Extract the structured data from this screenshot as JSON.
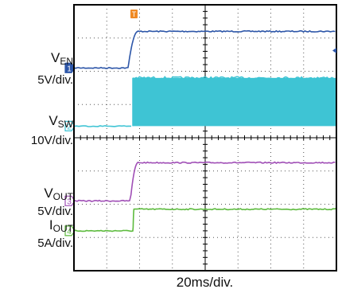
{
  "chart_data": {
    "type": "line",
    "grid": true,
    "divisions": {
      "x": 8,
      "y": 8
    },
    "timebase": "20ms/div.",
    "trigger_marker": "T",
    "channels": [
      {
        "id": "1",
        "name_main": "V",
        "name_sub": "EN",
        "scale": "5V/div.",
        "color": "#2d56a8",
        "low_level_div": 6.1,
        "high_level_div": 7.2,
        "rise_start_div": 1.65,
        "rise_end_div": 1.95
      },
      {
        "id": "2",
        "name_main": "V",
        "name_sub": "SW",
        "scale": "10V/div.",
        "color": "#3ec4d4",
        "low_level_div": 4.35,
        "high_level_div": 5.8,
        "switch_start_div": 1.8
      },
      {
        "id": "3",
        "name_main": "V",
        "name_sub": "OUT",
        "scale": "5V/div.",
        "color": "#a04fb6",
        "low_level_div": 2.1,
        "high_level_div": 3.25,
        "rise_start_div": 1.72,
        "rise_end_div": 1.95
      },
      {
        "id": "4",
        "name_main": "I",
        "name_sub": "OUT",
        "scale": "5A/div.",
        "color": "#5dbb3e",
        "low_level_div": 1.2,
        "high_level_div": 1.85,
        "rise_start_div": 1.8,
        "rise_end_div": 1.83
      }
    ]
  }
}
